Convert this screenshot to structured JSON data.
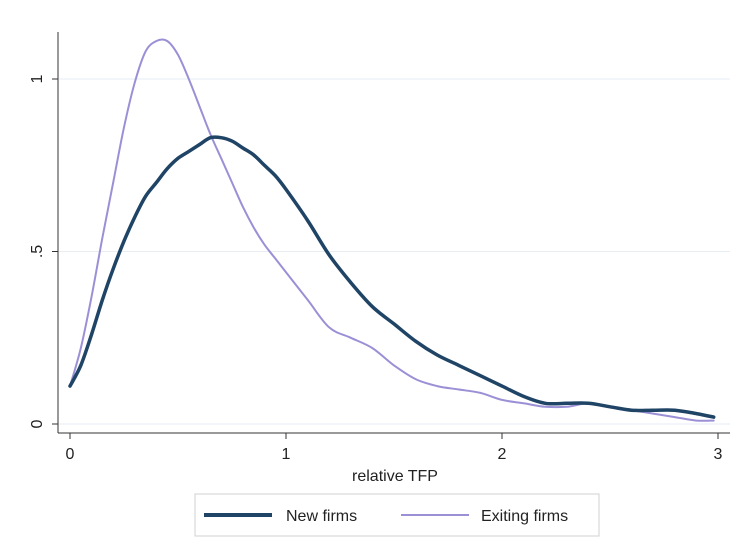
{
  "chart_data": {
    "type": "line",
    "title": "",
    "xlabel": "relative TFP",
    "ylabel": "",
    "xlim": [
      0,
      3
    ],
    "ylim": [
      0,
      1.13
    ],
    "xticks": [
      {
        "value": 0,
        "label": "0"
      },
      {
        "value": 1,
        "label": "1"
      },
      {
        "value": 2,
        "label": "2"
      },
      {
        "value": 3,
        "label": "3"
      }
    ],
    "yticks": [
      {
        "value": 0,
        "label": "0"
      },
      {
        "value": 0.5,
        "label": ".5"
      },
      {
        "value": 1,
        "label": "1"
      }
    ],
    "grid": "horizontal",
    "legend_position": "bottom",
    "series": [
      {
        "name": "New firms",
        "color": "#1f4466",
        "x": [
          0,
          0.05,
          0.1,
          0.15,
          0.2,
          0.25,
          0.3,
          0.35,
          0.4,
          0.45,
          0.5,
          0.55,
          0.6,
          0.65,
          0.7,
          0.75,
          0.8,
          0.85,
          0.9,
          0.95,
          1.0,
          1.1,
          1.2,
          1.3,
          1.4,
          1.5,
          1.6,
          1.7,
          1.8,
          1.9,
          2.0,
          2.1,
          2.2,
          2.3,
          2.4,
          2.5,
          2.6,
          2.7,
          2.8,
          2.9,
          2.98
        ],
        "y": [
          0.11,
          0.17,
          0.26,
          0.36,
          0.45,
          0.53,
          0.6,
          0.66,
          0.7,
          0.74,
          0.77,
          0.79,
          0.81,
          0.83,
          0.83,
          0.82,
          0.8,
          0.78,
          0.75,
          0.72,
          0.68,
          0.59,
          0.49,
          0.41,
          0.34,
          0.29,
          0.24,
          0.2,
          0.17,
          0.14,
          0.11,
          0.08,
          0.06,
          0.06,
          0.06,
          0.05,
          0.04,
          0.04,
          0.04,
          0.03,
          0.02
        ]
      },
      {
        "name": "Exiting firms",
        "color": "#9b90d6",
        "x": [
          0,
          0.05,
          0.1,
          0.15,
          0.2,
          0.25,
          0.3,
          0.35,
          0.4,
          0.45,
          0.5,
          0.55,
          0.6,
          0.65,
          0.7,
          0.75,
          0.8,
          0.85,
          0.9,
          0.95,
          1.0,
          1.1,
          1.2,
          1.3,
          1.4,
          1.5,
          1.6,
          1.7,
          1.8,
          1.9,
          2.0,
          2.1,
          2.2,
          2.3,
          2.4,
          2.5,
          2.6,
          2.7,
          2.8,
          2.9,
          2.98
        ],
        "y": [
          0.11,
          0.22,
          0.37,
          0.54,
          0.7,
          0.86,
          0.99,
          1.08,
          1.11,
          1.11,
          1.07,
          1.0,
          0.92,
          0.84,
          0.77,
          0.7,
          0.63,
          0.57,
          0.52,
          0.48,
          0.44,
          0.36,
          0.28,
          0.25,
          0.22,
          0.17,
          0.13,
          0.11,
          0.1,
          0.09,
          0.07,
          0.06,
          0.05,
          0.05,
          0.06,
          0.05,
          0.04,
          0.03,
          0.02,
          0.01,
          0.01
        ]
      }
    ]
  }
}
